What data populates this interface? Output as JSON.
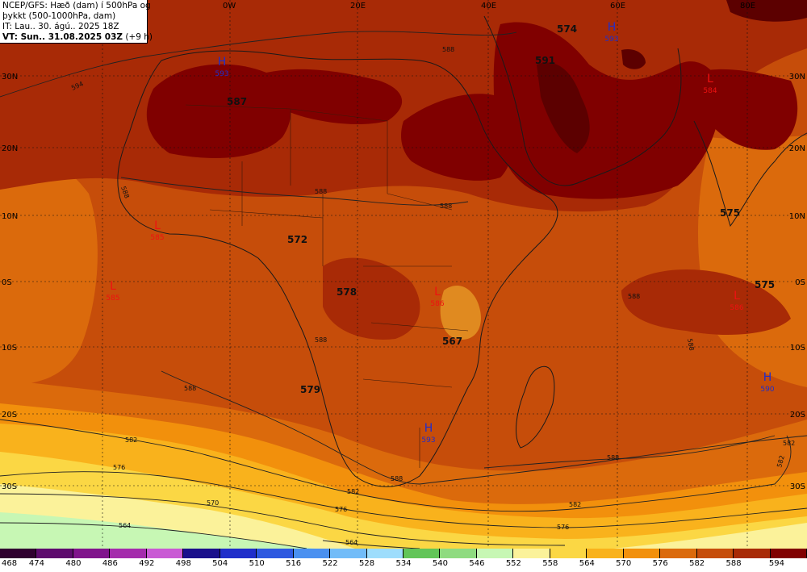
{
  "info": {
    "line1": "NCEP/GFS: Hæð (dam) í 500hPa og",
    "line2": "þykkt (500-1000hPa, dam)",
    "line3": "IT: Lau.. 30. ágú.. 2025 18Z",
    "line4_bold": "VT: Sun.. 31.08.2025 03Z",
    "line4_rest": " (+9 h)"
  },
  "lon_labels": [
    "0W",
    "20E",
    "40E",
    "60E",
    "80E"
  ],
  "lat_labels_left": [
    "30N",
    "20N",
    "10N",
    "0S",
    "10S",
    "20S",
    "30S"
  ],
  "lat_labels_right": [
    "30N",
    "20N",
    "10N",
    "0S",
    "10S",
    "20S",
    "30S"
  ],
  "colors": {
    "c546": "#fbf29a",
    "c552": "#fbd744",
    "c558": "#f9b21c",
    "c564": "#f2900c",
    "c570": "#db6a0c",
    "c576": "#c64d0a",
    "c582": "#a82a06",
    "c588": "#800000",
    "c594": "#5c0000",
    "c540": "#c7f7b4",
    "h_color": "#1f2ecc",
    "l_color": "#ee1111"
  },
  "pressure_centers": [
    {
      "type": "H",
      "value": "593"
    },
    {
      "type": "H",
      "value": "593"
    },
    {
      "type": "H",
      "value": "593"
    },
    {
      "type": "H",
      "value": "590"
    },
    {
      "type": "L",
      "value": "584"
    },
    {
      "type": "L",
      "value": "585"
    },
    {
      "type": "L",
      "value": "585"
    },
    {
      "type": "L",
      "value": "586"
    },
    {
      "type": "L",
      "value": "586"
    }
  ],
  "contour_numbers": [
    "574",
    "591",
    "587",
    "572",
    "578",
    "567",
    "579",
    "575",
    "575"
  ],
  "line_labels": [
    "594",
    "588",
    "588",
    "588",
    "588",
    "588",
    "588",
    "588",
    "588",
    "588",
    "582",
    "582",
    "582",
    "582",
    "576",
    "576",
    "576",
    "570",
    "564",
    "564",
    "588",
    "582"
  ],
  "colorbar": {
    "colors": [
      "#300030",
      "#5e0b6e",
      "#80148c",
      "#a42cac",
      "#c95ad4",
      "#1a108c",
      "#1f2eca",
      "#2d58e0",
      "#4a90f0",
      "#72bcf8",
      "#9eddfc",
      "#62c558",
      "#8fdb80",
      "#c7f7b4",
      "#fbf29a",
      "#fbd744",
      "#f9b21c",
      "#f2900c",
      "#db6a0c",
      "#c64d0a",
      "#a82a06",
      "#800000"
    ],
    "labels": [
      "468",
      "474",
      "480",
      "486",
      "492",
      "498",
      "504",
      "510",
      "516",
      "522",
      "528",
      "534",
      "540",
      "546",
      "552",
      "558",
      "564",
      "570",
      "576",
      "582",
      "588",
      "594"
    ]
  }
}
